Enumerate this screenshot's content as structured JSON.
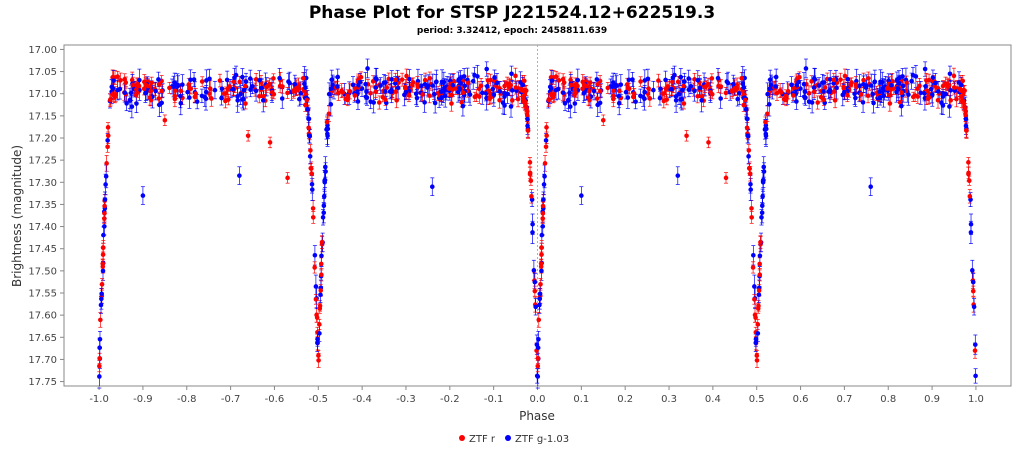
{
  "chart_data": {
    "type": "scatter",
    "title": "Phase Plot for STSP J221524.12+622519.3",
    "subtitle": "period: 3.32412, epoch: 2458811.639",
    "xlabel": "Phase",
    "ylabel": "Brightness (magnitude)",
    "xlim": [
      -1.08,
      1.08
    ],
    "ylim": [
      17.76,
      16.99
    ],
    "y_inverted": true,
    "x_ticks": [
      "-1.0",
      "-0.9",
      "-0.8",
      "-0.7",
      "-0.6",
      "-0.5",
      "-0.4",
      "-0.3",
      "-0.2",
      "-0.1",
      "0.0",
      "0.1",
      "0.2",
      "0.3",
      "0.4",
      "0.5",
      "0.6",
      "0.7",
      "0.8",
      "0.9",
      "1.0"
    ],
    "y_ticks": [
      "17.00",
      "17.05",
      "17.10",
      "17.15",
      "17.20",
      "17.25",
      "17.30",
      "17.35",
      "17.40",
      "17.45",
      "17.50",
      "17.55",
      "17.60",
      "17.65",
      "17.70",
      "17.75"
    ],
    "grid": false,
    "reference_line_x": 0.0,
    "legend_position": "bottom-center",
    "series": [
      {
        "name": "ZTF r",
        "color": "#ff0000"
      },
      {
        "name": "ZTF g-1.03",
        "color": "#0000ff"
      }
    ],
    "light_curve_shape": {
      "baseline_magnitude": 17.09,
      "primary_eclipse": {
        "phase": 0.0,
        "depth_magnitude": 17.74,
        "half_width": 0.03
      },
      "secondary_eclipse": {
        "phase": 0.5,
        "depth_magnitude": 17.71,
        "half_width": 0.03
      }
    },
    "outliers": [
      {
        "series": "ZTF g-1.03",
        "x": -0.9,
        "y": 17.33
      },
      {
        "series": "ZTF g-1.03",
        "x": -0.68,
        "y": 17.285
      },
      {
        "series": "ZTF r",
        "x": -0.57,
        "y": 17.29
      },
      {
        "series": "ZTF g-1.03",
        "x": -0.24,
        "y": 17.31
      },
      {
        "series": "ZTF g-1.03",
        "x": 0.1,
        "y": 17.33
      },
      {
        "series": "ZTF g-1.03",
        "x": 0.32,
        "y": 17.285
      },
      {
        "series": "ZTF r",
        "x": 0.43,
        "y": 17.29
      },
      {
        "series": "ZTF g-1.03",
        "x": 0.76,
        "y": 17.31
      },
      {
        "series": "ZTF r",
        "x": -0.66,
        "y": 17.195
      },
      {
        "series": "ZTF r",
        "x": -0.61,
        "y": 17.21
      },
      {
        "series": "ZTF r",
        "x": 0.34,
        "y": 17.195
      },
      {
        "series": "ZTF r",
        "x": 0.39,
        "y": 17.21
      },
      {
        "series": "ZTF r",
        "x": -0.85,
        "y": 17.16
      },
      {
        "series": "ZTF r",
        "x": 0.15,
        "y": 17.16
      }
    ]
  }
}
